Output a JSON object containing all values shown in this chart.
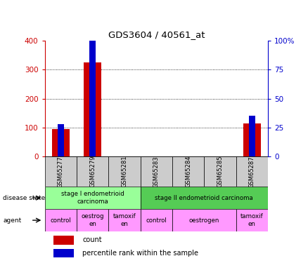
{
  "title": "GDS3604 / 40561_at",
  "samples": [
    "GSM65277",
    "GSM65279",
    "GSM65281",
    "GSM65283",
    "GSM65284",
    "GSM65285",
    "GSM65287"
  ],
  "count_values": [
    95,
    325,
    0,
    0,
    0,
    0,
    115
  ],
  "percentile_values": [
    28,
    100,
    0,
    0,
    0,
    0,
    35
  ],
  "ylim_left": [
    0,
    400
  ],
  "ylim_right": [
    0,
    100
  ],
  "yticks_left": [
    0,
    100,
    200,
    300,
    400
  ],
  "yticks_right": [
    0,
    25,
    50,
    75,
    100
  ],
  "ytick_labels_right": [
    "0",
    "25",
    "50",
    "75",
    "100%"
  ],
  "bar_color_count": "#cc0000",
  "bar_color_percentile": "#0000cc",
  "disease_state_groups": [
    {
      "label": "stage I endometrioid\ncarcinoma",
      "start": 0,
      "end": 2,
      "color": "#99ff99"
    },
    {
      "label": "stage II endometrioid carcinoma",
      "start": 3,
      "end": 6,
      "color": "#55cc55"
    }
  ],
  "agent_groups": [
    {
      "label": "control",
      "start": 0,
      "end": 0,
      "color": "#ff99ff"
    },
    {
      "label": "oestrog\nen",
      "start": 1,
      "end": 1,
      "color": "#ff99ff"
    },
    {
      "label": "tamoxif\nen",
      "start": 2,
      "end": 2,
      "color": "#ff99ff"
    },
    {
      "label": "control",
      "start": 3,
      "end": 3,
      "color": "#ff99ff"
    },
    {
      "label": "oestrogen",
      "start": 4,
      "end": 5,
      "color": "#ff99ff"
    },
    {
      "label": "tamoxif\nen",
      "start": 6,
      "end": 6,
      "color": "#ff99ff"
    }
  ],
  "legend_count_label": "count",
  "legend_percentile_label": "percentile rank within the sample",
  "disease_state_label": "disease state",
  "agent_label": "agent",
  "tick_color_left": "#cc0000",
  "tick_color_right": "#0000cc",
  "background_color": "#ffffff"
}
